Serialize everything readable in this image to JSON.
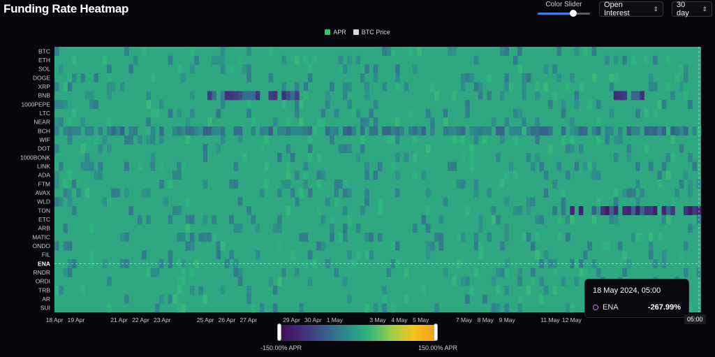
{
  "header": {
    "title": "Funding Rate Heatmap",
    "color_slider_label": "Color Slider",
    "color_slider_value": 0.68,
    "metric_select": "Open Interest",
    "period_select": "30 day"
  },
  "legend": [
    {
      "label": "APR",
      "color": "#2fc26a"
    },
    {
      "label": "BTC Price",
      "color": "#d9d9d9"
    }
  ],
  "colorbar": {
    "min_label": "-150.00% APR",
    "max_label": "150.00% APR"
  },
  "tooltip": {
    "time": "18 May 2024, 05:00",
    "symbol": "ENA",
    "value": "-267.99%"
  },
  "crosshair_time": "05:00",
  "chart_data": {
    "type": "heatmap",
    "title": "Funding Rate Heatmap",
    "value_unit": "% APR",
    "color_range": [
      -150,
      150
    ],
    "rows": [
      "BTC",
      "ETH",
      "SOL",
      "DOGE",
      "XRP",
      "BNB",
      "1000PEPE",
      "LTC",
      "NEAR",
      "BCH",
      "WIF",
      "DOT",
      "1000BONK",
      "LINK",
      "ADA",
      "FTM",
      "AVAX",
      "WLD",
      "TON",
      "ETC",
      "ARB",
      "MATIC",
      "ONDO",
      "FIL",
      "ENA",
      "RNDR",
      "ORDI",
      "TRB",
      "AR",
      "SUI"
    ],
    "highlighted_row": "ENA",
    "x_ticks": [
      "18 Apr",
      "19 Apr",
      "21 Apr",
      "22 Apr",
      "23 Apr",
      "25 Apr",
      "26 Apr",
      "27 Apr",
      "29 Apr",
      "30 Apr",
      "1 May",
      "3 May",
      "4 May",
      "5 May",
      "7 May",
      "8 May",
      "9 May",
      "11 May",
      "12 May"
    ],
    "baseline_apr": 10,
    "notable_cells": [
      {
        "row": "BNB",
        "from": "25 Apr",
        "to": "29 Apr",
        "apr": -110
      },
      {
        "row": "BNB",
        "from": "14 May",
        "to": "15 May",
        "apr": -130
      },
      {
        "row": "BCH",
        "from": "18 Apr",
        "to": "18 May",
        "apr": -60
      },
      {
        "row": "TON",
        "from": "12 May",
        "to": "18 May",
        "apr": -130
      },
      {
        "row": "ENA",
        "from": "18 May",
        "to": "18 May",
        "apr": -267.99
      }
    ]
  }
}
